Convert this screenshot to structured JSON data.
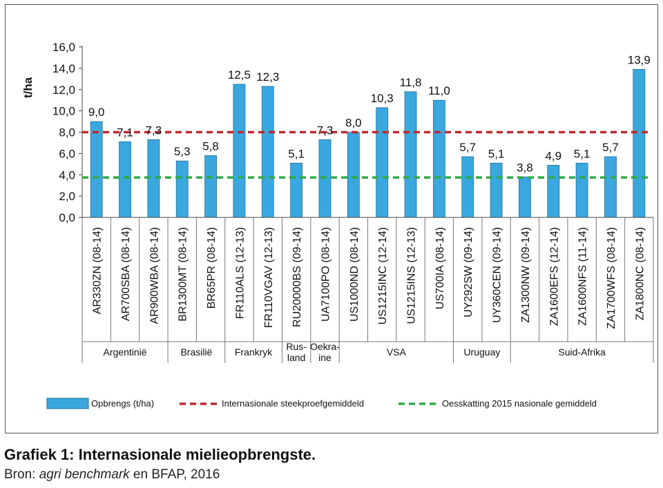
{
  "chart_data": {
    "type": "bar",
    "ylabel": "t/ha",
    "ylim": [
      0,
      16
    ],
    "yticks": [
      "0,0",
      "2,0",
      "4,0",
      "6,0",
      "8,0",
      "10,0",
      "12,0",
      "14,0",
      "16,0"
    ],
    "grid": false,
    "categories": [
      "AR330ZN (08-14)",
      "AR700SBA (08-14)",
      "AR900WBA (08-14)",
      "BR1300MT (08-14)",
      "BR65PR (08-14)",
      "FR110ALS (12-13)",
      "FR110VGAV (12-13)",
      "RU20000BS (09-14)",
      "UA7100PO (08-14)",
      "US1000ND (08-14)",
      "US1215INC (12-14)",
      "US1215INS (12-13)",
      "US700IA (08-14)",
      "UY292SW (09-14)",
      "UY360CEN (09-14)",
      "ZA1300NW (09-14)",
      "ZA1600EFS (12-14)",
      "ZA1600NFS (11-14)",
      "ZA1700WFS (08-14)",
      "ZA1800NC (08-14)"
    ],
    "values": [
      9.0,
      7.1,
      7.3,
      5.3,
      5.8,
      12.5,
      12.3,
      5.1,
      7.3,
      8.0,
      10.3,
      11.8,
      11.0,
      5.7,
      5.1,
      3.8,
      4.9,
      5.1,
      5.7,
      13.9
    ],
    "value_labels": [
      "9,0",
      "7,1",
      "7,3",
      "5,3",
      "5,8",
      "12,5",
      "12,3",
      "5,1",
      "7,3",
      "8,0",
      "10,3",
      "11,8",
      "11,0",
      "5,7",
      "5,1",
      "3,8",
      "4,9",
      "5,1",
      "5,7",
      "13,9"
    ],
    "groups": [
      {
        "lines": [
          "Argentinië"
        ],
        "count": 3
      },
      {
        "lines": [
          "Brasilië"
        ],
        "count": 2
      },
      {
        "lines": [
          "Frankryk"
        ],
        "count": 2
      },
      {
        "lines": [
          "Rus-",
          "land"
        ],
        "count": 1
      },
      {
        "lines": [
          "Oekra-",
          "ine"
        ],
        "count": 1
      },
      {
        "lines": [
          "VSA"
        ],
        "count": 4
      },
      {
        "lines": [
          "Uruguay"
        ],
        "count": 2
      },
      {
        "lines": [
          "Suid-Afrika"
        ],
        "count": 5
      }
    ],
    "reference_lines": [
      {
        "name": "Internasionale steekproefgemiddeld",
        "value": 8.0,
        "color": "#c0282d",
        "style": "dashed"
      },
      {
        "name": "Oesskatting 2015 nasionale gemiddeld",
        "value": 3.75,
        "color": "#2eaa48",
        "style": "dashed"
      }
    ],
    "series": [
      {
        "name": "Opbrengs (t/ha)",
        "color": "#3aa8df"
      }
    ],
    "legend_position": "bottom"
  },
  "caption": {
    "title": "Grafiek 1: Internasionale mielieopbrengste.",
    "source_prefix": "Bron: ",
    "source_italic": "agri benchmark",
    "source_suffix": " en BFAP, 2016"
  }
}
